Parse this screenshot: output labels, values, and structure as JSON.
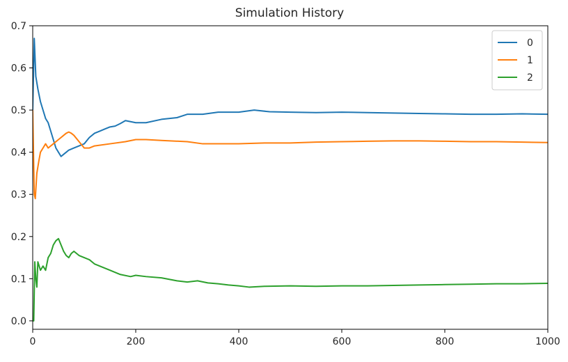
{
  "chart_data": {
    "type": "line",
    "title": "Simulation History",
    "xlabel": "",
    "ylabel": "",
    "xlim": [
      0,
      1000
    ],
    "ylim": [
      -0.02,
      0.7
    ],
    "xticks": [
      0,
      200,
      400,
      600,
      800,
      1000
    ],
    "yticks": [
      0.0,
      0.1,
      0.2,
      0.3,
      0.4,
      0.5,
      0.6,
      0.7
    ],
    "grid": false,
    "legend_position": "top-right",
    "series": [
      {
        "name": "0",
        "color": "#1f77b4",
        "x": [
          0,
          3,
          6,
          10,
          15,
          20,
          25,
          30,
          35,
          40,
          45,
          50,
          55,
          60,
          65,
          70,
          80,
          90,
          100,
          110,
          120,
          130,
          140,
          150,
          160,
          170,
          180,
          200,
          220,
          250,
          280,
          300,
          330,
          360,
          400,
          430,
          460,
          500,
          550,
          600,
          650,
          700,
          750,
          800,
          850,
          900,
          950,
          1000
        ],
        "y": [
          0.5,
          0.67,
          0.58,
          0.55,
          0.52,
          0.5,
          0.48,
          0.47,
          0.45,
          0.43,
          0.41,
          0.4,
          0.39,
          0.395,
          0.4,
          0.405,
          0.41,
          0.415,
          0.42,
          0.435,
          0.445,
          0.45,
          0.455,
          0.46,
          0.462,
          0.468,
          0.475,
          0.47,
          0.47,
          0.478,
          0.482,
          0.49,
          0.49,
          0.495,
          0.495,
          0.5,
          0.496,
          0.495,
          0.494,
          0.495,
          0.494,
          0.493,
          0.492,
          0.491,
          0.49,
          0.49,
          0.491,
          0.49
        ]
      },
      {
        "name": "1",
        "color": "#ff7f0e",
        "x": [
          0,
          3,
          5,
          8,
          12,
          15,
          20,
          25,
          30,
          40,
          50,
          55,
          60,
          65,
          70,
          75,
          80,
          90,
          100,
          110,
          120,
          150,
          180,
          200,
          220,
          250,
          300,
          330,
          350,
          400,
          450,
          500,
          550,
          600,
          650,
          700,
          750,
          800,
          850,
          900,
          950,
          1000
        ],
        "y": [
          0.5,
          0.3,
          0.29,
          0.35,
          0.38,
          0.4,
          0.41,
          0.42,
          0.41,
          0.42,
          0.43,
          0.435,
          0.44,
          0.445,
          0.448,
          0.445,
          0.44,
          0.425,
          0.41,
          0.41,
          0.415,
          0.42,
          0.425,
          0.43,
          0.43,
          0.428,
          0.425,
          0.42,
          0.42,
          0.42,
          0.422,
          0.422,
          0.424,
          0.425,
          0.426,
          0.427,
          0.427,
          0.426,
          0.425,
          0.425,
          0.424,
          0.423
        ]
      },
      {
        "name": "2",
        "color": "#2ca02c",
        "x": [
          0,
          2,
          4,
          6,
          8,
          10,
          15,
          20,
          25,
          30,
          35,
          40,
          45,
          50,
          55,
          60,
          65,
          70,
          75,
          80,
          90,
          100,
          110,
          120,
          130,
          140,
          150,
          170,
          190,
          200,
          220,
          250,
          280,
          300,
          320,
          340,
          360,
          380,
          400,
          420,
          450,
          500,
          550,
          600,
          650,
          700,
          750,
          800,
          850,
          900,
          950,
          1000
        ],
        "y": [
          0.0,
          0.0,
          0.14,
          0.1,
          0.08,
          0.14,
          0.12,
          0.13,
          0.12,
          0.15,
          0.16,
          0.18,
          0.19,
          0.195,
          0.18,
          0.165,
          0.155,
          0.15,
          0.16,
          0.165,
          0.155,
          0.15,
          0.145,
          0.135,
          0.13,
          0.125,
          0.12,
          0.11,
          0.105,
          0.108,
          0.105,
          0.102,
          0.095,
          0.092,
          0.095,
          0.09,
          0.088,
          0.085,
          0.083,
          0.08,
          0.082,
          0.083,
          0.082,
          0.083,
          0.083,
          0.084,
          0.085,
          0.086,
          0.087,
          0.088,
          0.088,
          0.089
        ]
      }
    ]
  }
}
